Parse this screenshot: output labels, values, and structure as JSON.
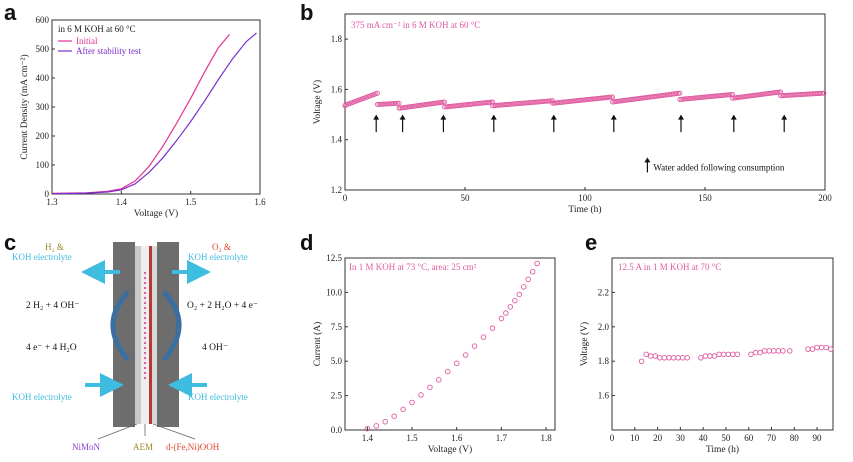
{
  "panels": {
    "a": {
      "letter": "a"
    },
    "b": {
      "letter": "b"
    },
    "c": {
      "letter": "c"
    },
    "d": {
      "letter": "d"
    },
    "e": {
      "letter": "e"
    }
  },
  "colors": {
    "magenta": "#e0338e",
    "purple": "#7b2fd0",
    "pink": "#e05aa0",
    "cyan": "#3fbde0",
    "red": "#e0452a",
    "olive": "#9a8a2a",
    "dark": "#333333"
  },
  "chart_data": [
    {
      "panel": "a",
      "type": "line",
      "title": "",
      "annotation": "in 6 M KOH at 60 °C",
      "xlabel": "Voltage (V)",
      "ylabel": "Current Density (mA cm⁻²)",
      "xlim": [
        1.3,
        1.6
      ],
      "ylim": [
        0,
        600
      ],
      "xticks": [
        "1.3",
        "1.4",
        "1.5",
        "1.6"
      ],
      "yticks": [
        "0",
        "100",
        "200",
        "300",
        "400",
        "500",
        "600"
      ],
      "legend": "top-left",
      "series": [
        {
          "name": "Initial",
          "color": "#e0338e",
          "x": [
            1.3,
            1.35,
            1.38,
            1.4,
            1.42,
            1.44,
            1.46,
            1.48,
            1.5,
            1.52,
            1.54,
            1.556
          ],
          "y": [
            2,
            4,
            9,
            18,
            45,
            95,
            165,
            245,
            330,
            420,
            505,
            550
          ]
        },
        {
          "name": "After stability test",
          "color": "#7b2fd0",
          "x": [
            1.3,
            1.35,
            1.38,
            1.4,
            1.42,
            1.44,
            1.46,
            1.48,
            1.5,
            1.52,
            1.54,
            1.56,
            1.58,
            1.595
          ],
          "y": [
            1,
            3,
            7,
            14,
            35,
            75,
            125,
            185,
            250,
            320,
            395,
            465,
            525,
            555
          ]
        }
      ]
    },
    {
      "panel": "b",
      "type": "scatter",
      "title": "",
      "annotation": "375 mA cm⁻² in 6 M KOH at 60 °C",
      "xlabel": "Time (h)",
      "ylabel": "Voltage (V)",
      "xlim": [
        0,
        200
      ],
      "ylim": [
        1.2,
        1.9
      ],
      "xticks": [
        "0",
        "50",
        "100",
        "150",
        "200"
      ],
      "yticks": [
        "1.2",
        "1.4",
        "1.6",
        "1.8"
      ],
      "segments": [
        {
          "x0": 0,
          "x1": 14,
          "y0": 1.535,
          "y1": 1.585
        },
        {
          "x0": 14,
          "x1": 23,
          "y0": 1.54,
          "y1": 1.545
        },
        {
          "x0": 23,
          "x1": 42,
          "y0": 1.525,
          "y1": 1.55
        },
        {
          "x0": 42,
          "x1": 62,
          "y0": 1.53,
          "y1": 1.55
        },
        {
          "x0": 62,
          "x1": 87,
          "y0": 1.535,
          "y1": 1.555
        },
        {
          "x0": 87,
          "x1": 112,
          "y0": 1.545,
          "y1": 1.57
        },
        {
          "x0": 112,
          "x1": 140,
          "y0": 1.55,
          "y1": 1.585
        },
        {
          "x0": 140,
          "x1": 162,
          "y0": 1.56,
          "y1": 1.58
        },
        {
          "x0": 162,
          "x1": 182,
          "y0": 1.565,
          "y1": 1.59
        },
        {
          "x0": 182,
          "x1": 200,
          "y0": 1.575,
          "y1": 1.585
        }
      ],
      "arrows_x": [
        13,
        24,
        41,
        62,
        87,
        112,
        140,
        162,
        183
      ],
      "arrows_y": [
        1.43,
        1.5
      ],
      "legend_arrow": {
        "x": 126,
        "y0": 1.27,
        "y1": 1.33,
        "label": "Water added following consumption"
      }
    },
    {
      "panel": "d",
      "type": "scatter",
      "title": "",
      "annotation": "In 1 M KOH at 73 °C, area: 25 cm²",
      "xlabel": "Voltage (V)",
      "ylabel": "Current (A)",
      "xlim": [
        1.35,
        1.82
      ],
      "ylim": [
        0,
        12.5
      ],
      "xticks": [
        "1.4",
        "1.5",
        "1.6",
        "1.7",
        "1.8"
      ],
      "yticks": [
        "0.0",
        "2.5",
        "5.0",
        "7.5",
        "10.0",
        "12.5"
      ],
      "x": [
        1.4,
        1.42,
        1.44,
        1.46,
        1.48,
        1.5,
        1.52,
        1.54,
        1.56,
        1.58,
        1.6,
        1.62,
        1.64,
        1.66,
        1.68,
        1.7,
        1.71,
        1.72,
        1.73,
        1.74,
        1.75,
        1.76,
        1.77,
        1.78
      ],
      "y": [
        0.1,
        0.3,
        0.6,
        1.0,
        1.5,
        2.0,
        2.55,
        3.1,
        3.65,
        4.25,
        4.85,
        5.45,
        6.1,
        6.75,
        7.4,
        8.1,
        8.5,
        8.95,
        9.4,
        9.85,
        10.4,
        10.95,
        11.5,
        12.1
      ]
    },
    {
      "panel": "e",
      "type": "scatter",
      "title": "",
      "annotation": "12.5 A in 1 M KOH at 70 °C",
      "xlabel": "Time (h)",
      "ylabel": "Voltage (V)",
      "xlim": [
        0,
        97
      ],
      "ylim": [
        1.4,
        2.4
      ],
      "xticks": [
        "0",
        "10",
        "20",
        "30",
        "40",
        "50",
        "60",
        "70",
        "80",
        "90"
      ],
      "yticks": [
        "1.6",
        "1.8",
        "2.0",
        "2.2"
      ],
      "x": [
        13,
        15,
        17,
        19,
        21,
        23,
        25,
        27,
        29,
        31,
        33,
        39,
        41,
        43,
        45,
        47,
        49,
        51,
        53,
        55,
        61,
        63,
        65,
        67,
        69,
        71,
        73,
        75,
        78,
        86,
        88,
        90,
        92,
        94,
        96
      ],
      "y": [
        1.8,
        1.84,
        1.83,
        1.83,
        1.82,
        1.82,
        1.82,
        1.82,
        1.82,
        1.82,
        1.82,
        1.82,
        1.83,
        1.83,
        1.83,
        1.84,
        1.84,
        1.84,
        1.84,
        1.84,
        1.84,
        1.85,
        1.85,
        1.86,
        1.86,
        1.86,
        1.86,
        1.86,
        1.86,
        1.87,
        1.87,
        1.88,
        1.88,
        1.88,
        1.87
      ]
    }
  ],
  "diagram": {
    "left_top": [
      "H₂ &",
      "KOH electrolyte"
    ],
    "right_top": [
      "O₂ &",
      "KOH electrolyte"
    ],
    "left_eq1": "2 H₂ + 4 OH⁻",
    "left_eq2": "4 e⁻ + 4 H₂O",
    "right_eq1": "O₂ + 2 H₂O + 4 e⁻",
    "right_eq2": "4 OH⁻",
    "left_bottom": "KOH electrolyte",
    "right_bottom": "KOH electrolyte",
    "label_left": "NiMoN",
    "label_mid": "AEM",
    "label_right": "d-(Fe,Ni)OOH"
  }
}
